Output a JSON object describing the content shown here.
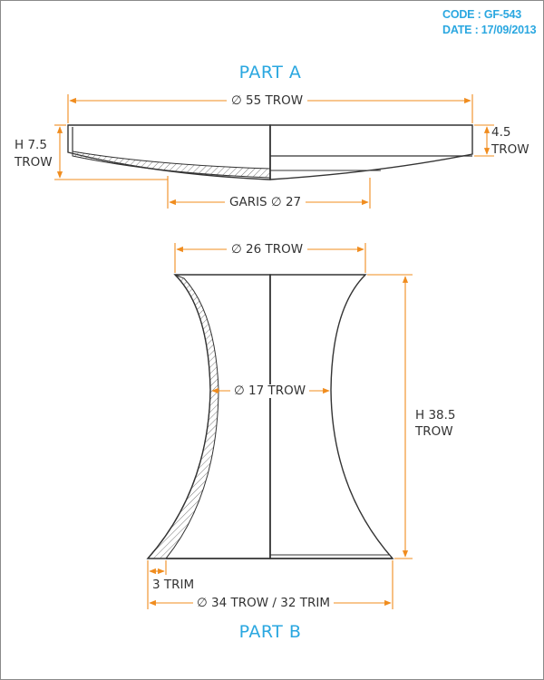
{
  "header": {
    "code_label": "CODE : GF-543",
    "date_label": "DATE : 17/09/2013"
  },
  "part_a": {
    "title": "PART A",
    "diameter_label": "∅ 55 TROW",
    "height_label_1": "H 7.5",
    "height_label_2": "TROW",
    "thickness_label_1": "4.5",
    "thickness_label_2": "TROW",
    "garis_label": "GARIS ∅ 27"
  },
  "part_b": {
    "title": "PART B",
    "top_diameter_label": "∅ 26 TROW",
    "waist_diameter_label": "∅ 17 TROW",
    "height_label_1": "H 38.5",
    "height_label_2": "TROW",
    "trim_label": "3 TRIM",
    "base_diameter_label": "∅ 34 TROW / 32 TRIM"
  },
  "colors": {
    "title_blue": "#2aa7e0",
    "dimension_orange": "#f08c1e",
    "outline": "#333333"
  }
}
